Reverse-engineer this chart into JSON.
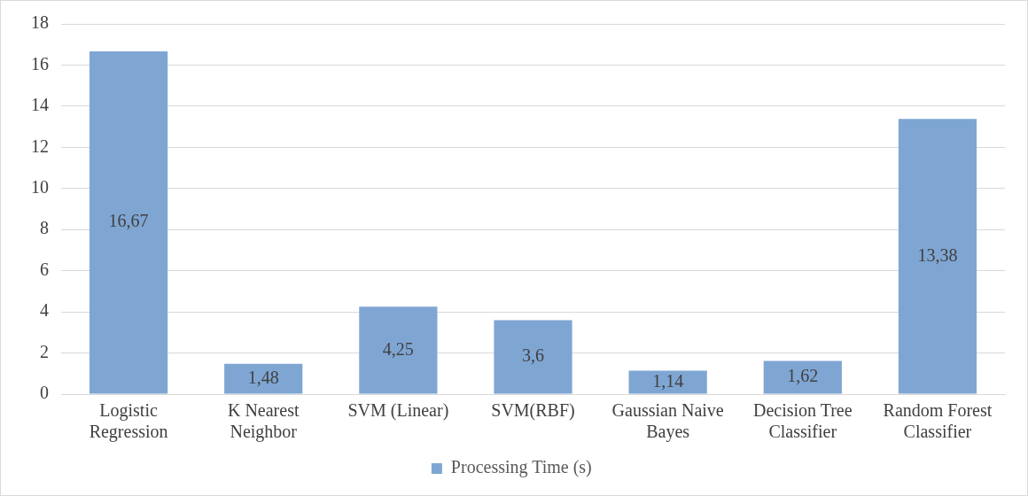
{
  "chart_data": {
    "type": "bar",
    "categories": [
      "Logistic Regression",
      "K Nearest Neighbor",
      "SVM (Linear)",
      "SVM(RBF)",
      "Gaussian Naive Bayes",
      "Decision Tree Classifier",
      "Random Forest Classifier"
    ],
    "series": [
      {
        "name": "Processing Time (s)",
        "color": "#7fa6d3",
        "values": [
          16.67,
          1.48,
          4.25,
          3.6,
          1.14,
          1.62,
          13.38
        ],
        "value_labels": [
          "16,67",
          "1,48",
          "4,25",
          "3,6",
          "1,14",
          "1,62",
          "13,38"
        ]
      }
    ],
    "ylim": [
      0,
      18
    ],
    "yticks": [
      0,
      2,
      4,
      6,
      8,
      10,
      12,
      14,
      16,
      18
    ],
    "grid": "y",
    "legend": "bottom"
  }
}
